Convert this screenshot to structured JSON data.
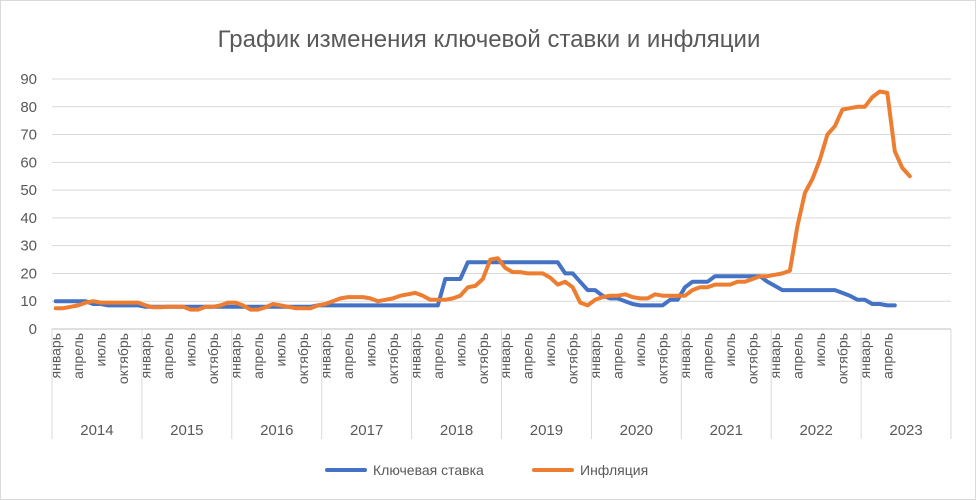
{
  "chart_data": {
    "type": "line",
    "title": "График изменения ключевой ставки и инфляции",
    "ylim": [
      0,
      90
    ],
    "yticks": [
      0,
      10,
      20,
      30,
      40,
      50,
      60,
      70,
      80,
      90
    ],
    "grid": "horizontal",
    "legend": "bottom",
    "month_labels": [
      "январь",
      "апрель",
      "июль",
      "октябрь"
    ],
    "years": [
      "2014",
      "2015",
      "2016",
      "2017",
      "2018",
      "2019",
      "2020",
      "2021",
      "2022",
      "2023"
    ],
    "x_start": "2014-01",
    "x_end": "2023-03",
    "series": [
      {
        "name": "Ключевая ставка",
        "color": "#4472C4",
        "values": [
          10,
          10,
          10,
          10,
          10,
          9,
          9,
          8.5,
          8.5,
          8.5,
          8.5,
          8.5,
          8,
          8,
          8,
          8,
          8,
          8,
          8,
          8,
          8,
          8,
          8,
          8,
          8,
          8,
          8,
          8,
          8,
          8,
          8,
          8,
          8,
          8,
          8,
          8.5,
          8.5,
          8.5,
          8.5,
          8.5,
          8.5,
          8.5,
          8.5,
          8.5,
          8.5,
          8.5,
          8.5,
          8.5,
          8.5,
          8.5,
          8.5,
          8.5,
          18,
          18,
          18,
          24,
          24,
          24,
          24,
          24,
          24,
          24,
          24,
          24,
          24,
          24,
          24,
          24,
          20,
          20,
          17,
          14,
          14,
          12,
          11,
          11,
          10,
          9,
          8.5,
          8.5,
          8.5,
          8.5,
          10.5,
          10.5,
          15,
          17,
          17,
          17,
          19,
          19,
          19,
          19,
          19,
          19,
          19,
          17,
          15.5,
          14,
          14,
          14,
          14,
          14,
          14,
          14,
          14,
          13,
          12,
          10.5,
          10.5,
          9,
          9,
          8.5,
          8.5
        ]
      },
      {
        "name": "Инфляция",
        "color": "#ED7D31",
        "values": [
          7.5,
          7.5,
          8,
          8.5,
          9.5,
          10,
          9.5,
          9.5,
          9.5,
          9.5,
          9.5,
          9.5,
          8.5,
          7.8,
          7.8,
          8,
          8,
          8,
          7,
          7,
          8,
          8,
          8.5,
          9.5,
          9.5,
          8.5,
          7,
          7,
          7.8,
          9,
          8.5,
          8,
          7.5,
          7.5,
          7.5,
          8.5,
          9,
          10,
          11,
          11.5,
          11.5,
          11.5,
          11,
          10,
          10.5,
          11,
          12,
          12.5,
          13,
          12,
          10.5,
          10.5,
          10.5,
          11,
          12,
          15,
          15.5,
          18,
          25,
          25.5,
          22,
          20.5,
          20.5,
          20,
          20,
          20,
          18.5,
          16,
          17,
          15,
          9.5,
          8.5,
          10.5,
          11.5,
          12,
          12,
          12.5,
          11.5,
          11,
          11,
          12.5,
          12,
          12,
          12,
          12,
          14,
          15,
          15,
          16,
          16,
          16,
          17,
          17,
          18,
          19,
          19,
          19.5,
          20,
          21,
          37,
          49,
          54,
          61,
          70,
          73,
          79,
          79.5,
          80,
          80,
          83.5,
          85.5,
          85,
          64,
          58,
          55
        ]
      }
    ]
  }
}
